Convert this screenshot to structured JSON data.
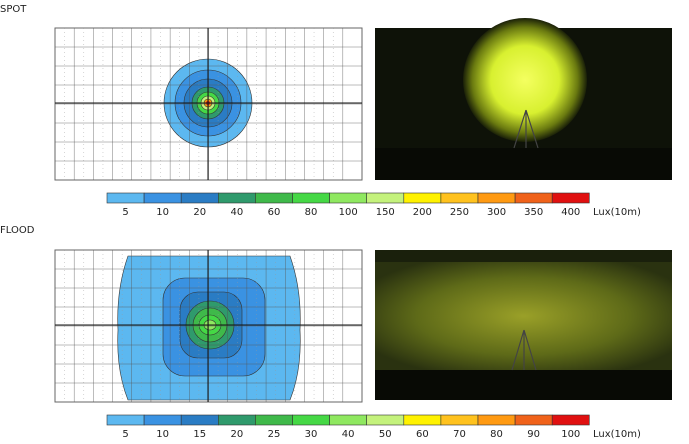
{
  "legend_colors": [
    "#5cb8f0",
    "#3a92e2",
    "#2a7cc4",
    "#2f9a6c",
    "#3fb94a",
    "#45d845",
    "#8fe860",
    "#c4f27c",
    "#fff200",
    "#ffc21e",
    "#ff9a12",
    "#f0621a",
    "#e01010"
  ],
  "spot": {
    "title": "SPOT",
    "legend": {
      "labels": [
        5,
        10,
        20,
        40,
        60,
        80,
        100,
        150,
        200,
        250,
        300,
        350,
        400
      ],
      "unit": "Lux(10m)"
    }
  },
  "flood": {
    "title": "FLOOD",
    "legend": {
      "labels": [
        5,
        10,
        15,
        20,
        25,
        30,
        40,
        50,
        60,
        70,
        80,
        90,
        100
      ],
      "unit": "Lux(10m)"
    }
  }
}
